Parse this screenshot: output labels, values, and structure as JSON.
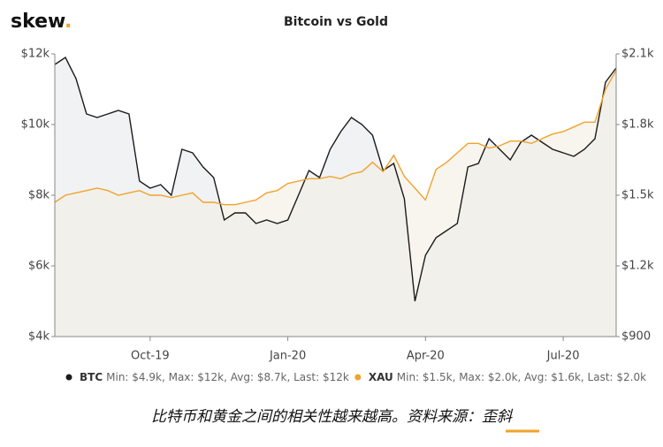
{
  "logo": {
    "text": "skew",
    "dot": "."
  },
  "caption": {
    "text": "比特币和黄金之间的相关性越来越高。资料来源：",
    "source": "歪斜"
  },
  "chart_data": {
    "type": "line",
    "title": "Bitcoin vs Gold",
    "categories": [
      null,
      null,
      null,
      null,
      null,
      null,
      null,
      null,
      null,
      "Oct-19",
      null,
      null,
      null,
      null,
      null,
      null,
      null,
      null,
      null,
      null,
      null,
      null,
      "Jan-20",
      null,
      null,
      null,
      null,
      null,
      null,
      null,
      null,
      null,
      null,
      null,
      null,
      "Apr-20",
      null,
      null,
      null,
      null,
      null,
      null,
      null,
      null,
      null,
      null,
      null,
      null,
      "Jul-20",
      null,
      null,
      null,
      null,
      null
    ],
    "series": [
      {
        "name": "BTC",
        "color": "#1b1b1b",
        "fill": "#e6eaed",
        "stats": "Min: $4.9k, Max: $12k, Avg: $8.7k, Last: $12k",
        "values": [
          11700,
          11900,
          11300,
          10300,
          10200,
          10300,
          10400,
          10300,
          8400,
          8200,
          8300,
          8000,
          9300,
          9200,
          8800,
          8500,
          7300,
          7500,
          7500,
          7200,
          7300,
          7200,
          7300,
          8000,
          8700,
          8500,
          9300,
          9800,
          10200,
          10000,
          9700,
          8700,
          8900,
          7900,
          5000,
          6300,
          6800,
          7000,
          7200,
          8800,
          8900,
          9600,
          9300,
          9000,
          9500,
          9700,
          9500,
          9300,
          9200,
          9100,
          9300,
          9600,
          11200,
          11600
        ]
      },
      {
        "name": "XAU",
        "color": "#f0a32a",
        "fill": "#f4efe4",
        "axis": "y2",
        "stats": "Min: $1.5k, Max: $2.0k, Avg: $1.6k, Last: $2.0k",
        "values": [
          1470,
          1500,
          1510,
          1520,
          1530,
          1520,
          1500,
          1510,
          1520,
          1500,
          1500,
          1490,
          1500,
          1510,
          1470,
          1470,
          1460,
          1460,
          1470,
          1480,
          1510,
          1520,
          1550,
          1560,
          1570,
          1570,
          1580,
          1570,
          1590,
          1600,
          1640,
          1600,
          1670,
          1580,
          1530,
          1480,
          1610,
          1640,
          1680,
          1720,
          1720,
          1700,
          1710,
          1730,
          1730,
          1720,
          1740,
          1760,
          1770,
          1790,
          1810,
          1810,
          1950,
          2030
        ]
      }
    ],
    "ylim": [
      4000,
      12000
    ],
    "yticks": [
      {
        "value": 4000,
        "label": "$4k"
      },
      {
        "value": 6000,
        "label": "$6k"
      },
      {
        "value": 8000,
        "label": "$8k"
      },
      {
        "value": 10000,
        "label": "$10k"
      },
      {
        "value": 12000,
        "label": "$12k"
      }
    ],
    "y2lim": [
      900,
      2100
    ],
    "y2ticks": [
      {
        "value": 900,
        "label": "$900"
      },
      {
        "value": 1200,
        "label": "$1.2k"
      },
      {
        "value": 1500,
        "label": "$1.5k"
      },
      {
        "value": 1800,
        "label": "$1.8k"
      },
      {
        "value": 2100,
        "label": "$2.1k"
      }
    ]
  }
}
